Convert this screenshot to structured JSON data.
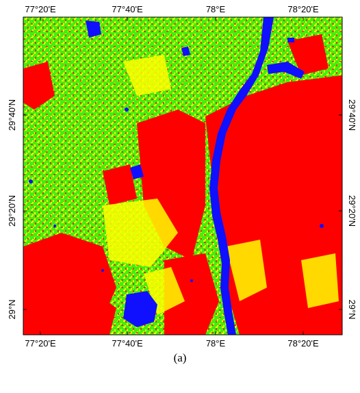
{
  "map": {
    "top_ticks": [
      "77°20'E",
      "77°40'E",
      "78°E",
      "78°20'E"
    ],
    "bottom_ticks": [
      "77°20'E",
      "77°40'E",
      "78°E",
      "78°20'E"
    ],
    "left_ticks": [
      "29°40'N",
      "29°20'N",
      "29°N"
    ],
    "right_ticks": [
      "29°40'N",
      "29°20'N",
      "29°N"
    ],
    "class_colors": {
      "vegetation": "#44ee11",
      "urban": "#ff0000",
      "soil": "#ffff00",
      "water": "#1010ff"
    }
  },
  "caption": "(a)"
}
